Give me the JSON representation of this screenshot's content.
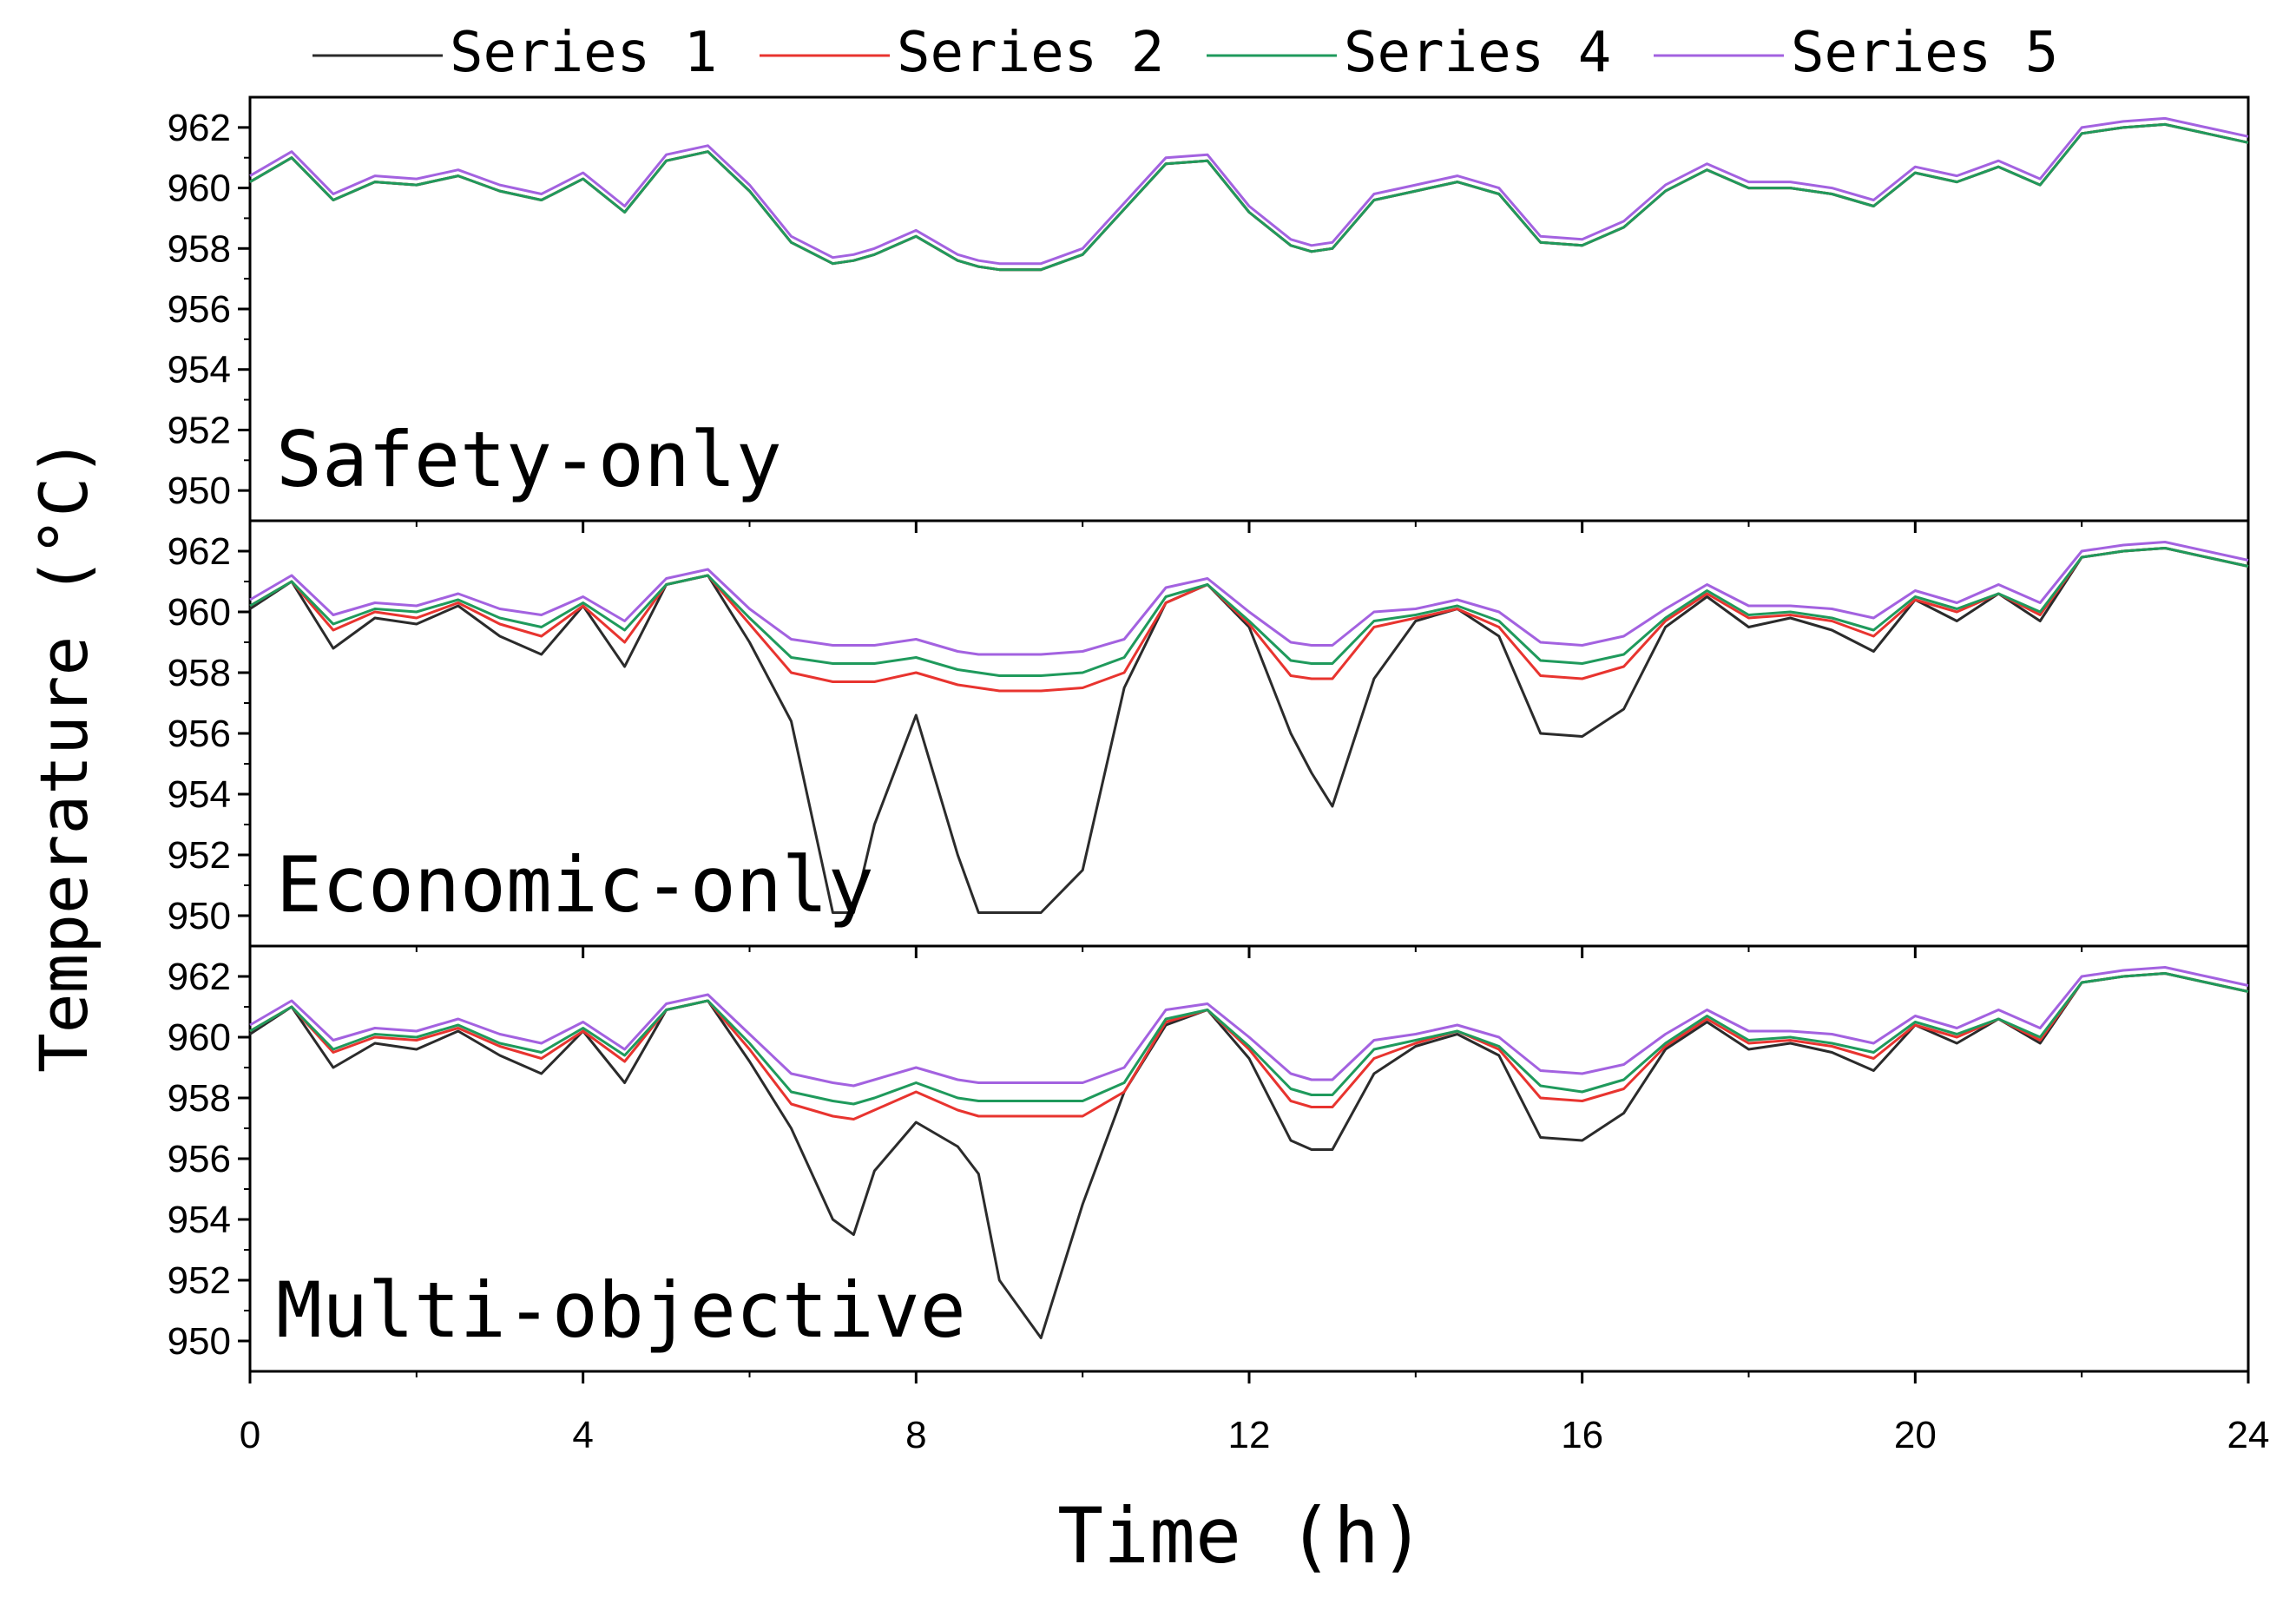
{
  "chart_data": {
    "type": "line",
    "xlabel": "Time (h)",
    "ylabel": "Temperature (°C)",
    "xlim": [
      0,
      24
    ],
    "ylim": [
      949,
      963
    ],
    "xticks": [
      0,
      4,
      8,
      12,
      16,
      20,
      24
    ],
    "yticks": [
      950,
      952,
      954,
      956,
      958,
      960,
      962
    ],
    "legend": [
      "Series 1",
      "Series 2",
      "Series 4",
      "Series 5"
    ],
    "colors": {
      "Series 1": "#2b2b2b",
      "Series 2": "#e8342f",
      "Series 4": "#1f9a5c",
      "Series 5": "#a362e0"
    },
    "x": [
      0,
      0.5,
      1,
      1.5,
      2,
      2.5,
      3,
      3.5,
      4,
      4.5,
      5,
      5.5,
      6,
      6.5,
      7,
      7.25,
      7.5,
      8,
      8.5,
      8.75,
      9,
      9.5,
      10,
      10.5,
      11,
      11.5,
      12,
      12.5,
      12.75,
      13,
      13.5,
      14,
      14.5,
      15,
      15.5,
      16,
      16.5,
      17,
      17.5,
      18,
      18.5,
      19,
      19.5,
      20,
      20.5,
      21,
      21.5,
      22,
      22.5,
      23,
      23.5,
      24
    ],
    "panels": [
      {
        "label": "Safety-only",
        "series": [
          {
            "name": "Series 1",
            "values": [
              960.2,
              961.0,
              959.6,
              960.2,
              960.1,
              960.4,
              959.9,
              959.6,
              960.3,
              959.2,
              960.9,
              961.2,
              959.9,
              958.2,
              957.5,
              957.6,
              957.8,
              958.4,
              957.6,
              957.4,
              957.3,
              957.3,
              957.8,
              959.3,
              960.8,
              960.9,
              959.2,
              958.1,
              957.9,
              958.0,
              959.6,
              959.9,
              960.2,
              959.8,
              958.2,
              958.1,
              958.7,
              959.9,
              960.6,
              960.0,
              960.0,
              959.8,
              959.4,
              960.5,
              960.2,
              960.7,
              960.1,
              961.8,
              962.0,
              962.1,
              961.8,
              961.5
            ]
          },
          {
            "name": "Series 2",
            "values": [
              960.2,
              961.0,
              959.6,
              960.2,
              960.1,
              960.4,
              959.9,
              959.6,
              960.3,
              959.2,
              960.9,
              961.2,
              959.9,
              958.2,
              957.5,
              957.6,
              957.8,
              958.4,
              957.6,
              957.4,
              957.3,
              957.3,
              957.8,
              959.3,
              960.8,
              960.9,
              959.2,
              958.1,
              957.9,
              958.0,
              959.6,
              959.9,
              960.2,
              959.8,
              958.2,
              958.1,
              958.7,
              959.9,
              960.6,
              960.0,
              960.0,
              959.8,
              959.4,
              960.5,
              960.2,
              960.7,
              960.1,
              961.8,
              962.0,
              962.1,
              961.8,
              961.5
            ]
          },
          {
            "name": "Series 4",
            "values": [
              960.2,
              961.0,
              959.6,
              960.2,
              960.1,
              960.4,
              959.9,
              959.6,
              960.3,
              959.2,
              960.9,
              961.2,
              959.9,
              958.2,
              957.5,
              957.6,
              957.8,
              958.4,
              957.6,
              957.4,
              957.3,
              957.3,
              957.8,
              959.3,
              960.8,
              960.9,
              959.2,
              958.1,
              957.9,
              958.0,
              959.6,
              959.9,
              960.2,
              959.8,
              958.2,
              958.1,
              958.7,
              959.9,
              960.6,
              960.0,
              960.0,
              959.8,
              959.4,
              960.5,
              960.2,
              960.7,
              960.1,
              961.8,
              962.0,
              962.1,
              961.8,
              961.5
            ]
          },
          {
            "name": "Series 5",
            "values": [
              960.4,
              961.2,
              959.8,
              960.4,
              960.3,
              960.6,
              960.1,
              959.8,
              960.5,
              959.4,
              961.1,
              961.4,
              960.1,
              958.4,
              957.7,
              957.8,
              958.0,
              958.6,
              957.8,
              957.6,
              957.5,
              957.5,
              958.0,
              959.5,
              961.0,
              961.1,
              959.4,
              958.3,
              958.1,
              958.2,
              959.8,
              960.1,
              960.4,
              960.0,
              958.4,
              958.3,
              958.9,
              960.1,
              960.8,
              960.2,
              960.2,
              960.0,
              959.6,
              960.7,
              960.4,
              960.9,
              960.3,
              962.0,
              962.2,
              962.3,
              962.0,
              961.7
            ]
          }
        ]
      },
      {
        "label": "Economic-only",
        "series": [
          {
            "name": "Series 1",
            "values": [
              960.1,
              961.0,
              958.8,
              959.8,
              959.6,
              960.2,
              959.2,
              958.6,
              960.2,
              958.2,
              960.9,
              961.2,
              959.0,
              956.4,
              950.1,
              950.1,
              953.0,
              956.6,
              952.0,
              950.1,
              950.1,
              950.1,
              951.5,
              957.5,
              960.3,
              960.9,
              959.5,
              956.0,
              954.7,
              953.6,
              957.8,
              959.7,
              960.1,
              959.2,
              956.0,
              955.9,
              956.8,
              959.5,
              960.5,
              959.5,
              959.8,
              959.4,
              958.7,
              960.4,
              959.7,
              960.6,
              959.7,
              961.8,
              962.0,
              962.1,
              961.8,
              961.5
            ]
          },
          {
            "name": "Series 2",
            "values": [
              960.2,
              961.0,
              959.4,
              960.0,
              959.8,
              960.3,
              959.6,
              959.2,
              960.2,
              959.0,
              960.9,
              961.2,
              959.6,
              958.0,
              957.7,
              957.7,
              957.7,
              958.0,
              957.6,
              957.5,
              957.4,
              957.4,
              957.5,
              958.0,
              960.3,
              960.9,
              959.6,
              957.9,
              957.8,
              957.8,
              959.5,
              959.8,
              960.1,
              959.5,
              957.9,
              957.8,
              958.2,
              959.7,
              960.6,
              959.8,
              959.9,
              959.7,
              959.2,
              960.4,
              960.0,
              960.6,
              959.9,
              961.8,
              962.0,
              962.1,
              961.8,
              961.5
            ]
          },
          {
            "name": "Series 4",
            "values": [
              960.2,
              961.0,
              959.6,
              960.1,
              960.0,
              960.4,
              959.8,
              959.5,
              960.3,
              959.4,
              960.9,
              961.2,
              959.8,
              958.5,
              958.3,
              958.3,
              958.3,
              958.5,
              958.1,
              958.0,
              957.9,
              957.9,
              958.0,
              958.5,
              960.5,
              960.9,
              959.7,
              958.4,
              958.3,
              958.3,
              959.7,
              959.9,
              960.2,
              959.7,
              958.4,
              958.3,
              958.6,
              959.8,
              960.7,
              959.9,
              960.0,
              959.8,
              959.4,
              960.5,
              960.1,
              960.6,
              960.0,
              961.8,
              962.0,
              962.1,
              961.8,
              961.5
            ]
          },
          {
            "name": "Series 5",
            "values": [
              960.4,
              961.2,
              959.9,
              960.3,
              960.2,
              960.6,
              960.1,
              959.9,
              960.5,
              959.7,
              961.1,
              961.4,
              960.1,
              959.1,
              958.9,
              958.9,
              958.9,
              959.1,
              958.7,
              958.6,
              958.6,
              958.6,
              958.7,
              959.1,
              960.8,
              961.1,
              960.0,
              959.0,
              958.9,
              958.9,
              960.0,
              960.1,
              960.4,
              960.0,
              959.0,
              958.9,
              959.2,
              960.1,
              960.9,
              960.2,
              960.2,
              960.1,
              959.8,
              960.7,
              960.3,
              960.9,
              960.3,
              962.0,
              962.2,
              962.3,
              962.0,
              961.7
            ]
          }
        ]
      },
      {
        "label": "Multi-objective",
        "series": [
          {
            "name": "Series 1",
            "values": [
              960.1,
              961.0,
              959.0,
              959.8,
              959.6,
              960.2,
              959.4,
              958.8,
              960.2,
              958.5,
              960.9,
              961.2,
              959.2,
              957.0,
              954.0,
              953.5,
              955.6,
              957.2,
              956.4,
              955.5,
              952.0,
              950.1,
              954.5,
              958.2,
              960.4,
              960.9,
              959.3,
              956.6,
              956.3,
              956.3,
              958.8,
              959.7,
              960.1,
              959.4,
              956.7,
              956.6,
              957.5,
              959.6,
              960.5,
              959.6,
              959.8,
              959.5,
              958.9,
              960.4,
              959.8,
              960.6,
              959.8,
              961.8,
              962.0,
              962.1,
              961.8,
              961.5
            ]
          },
          {
            "name": "Series 2",
            "values": [
              960.2,
              961.0,
              959.5,
              960.0,
              959.9,
              960.3,
              959.7,
              959.3,
              960.2,
              959.2,
              960.9,
              961.2,
              959.6,
              957.8,
              957.4,
              957.3,
              957.6,
              958.2,
              957.6,
              957.4,
              957.4,
              957.4,
              957.4,
              958.2,
              960.5,
              960.9,
              959.6,
              957.9,
              957.7,
              957.7,
              959.3,
              959.8,
              960.2,
              959.6,
              958.0,
              957.9,
              958.3,
              959.7,
              960.6,
              959.8,
              959.9,
              959.7,
              959.3,
              960.4,
              960.0,
              960.6,
              959.9,
              961.8,
              962.0,
              962.1,
              961.8,
              961.5
            ]
          },
          {
            "name": "Series 4",
            "values": [
              960.2,
              961.0,
              959.6,
              960.1,
              960.0,
              960.4,
              959.8,
              959.5,
              960.3,
              959.4,
              960.9,
              961.2,
              959.8,
              958.2,
              957.9,
              957.8,
              958.0,
              958.5,
              958.0,
              957.9,
              957.9,
              957.9,
              957.9,
              958.5,
              960.6,
              960.9,
              959.7,
              958.3,
              958.1,
              958.1,
              959.6,
              959.9,
              960.2,
              959.7,
              958.4,
              958.2,
              958.6,
              959.8,
              960.7,
              959.9,
              960.0,
              959.8,
              959.5,
              960.5,
              960.1,
              960.6,
              960.0,
              961.8,
              962.0,
              962.1,
              961.8,
              961.5
            ]
          },
          {
            "name": "Series 5",
            "values": [
              960.4,
              961.2,
              959.9,
              960.3,
              960.2,
              960.6,
              960.1,
              959.8,
              960.5,
              959.6,
              961.1,
              961.4,
              960.1,
              958.8,
              958.5,
              958.4,
              958.6,
              959.0,
              958.6,
              958.5,
              958.5,
              958.5,
              958.5,
              959.0,
              960.9,
              961.1,
              960.0,
              958.8,
              958.6,
              958.6,
              959.9,
              960.1,
              960.4,
              960.0,
              958.9,
              958.8,
              959.1,
              960.1,
              960.9,
              960.2,
              960.2,
              960.1,
              959.8,
              960.7,
              960.3,
              960.9,
              960.3,
              962.0,
              962.2,
              962.3,
              962.0,
              961.7
            ]
          }
        ]
      }
    ]
  }
}
